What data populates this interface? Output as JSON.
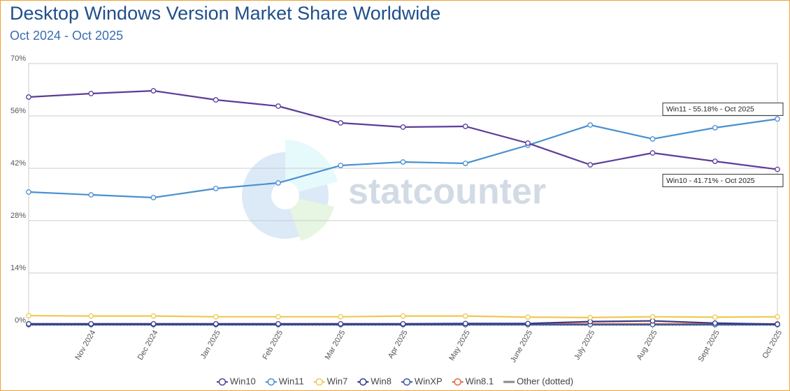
{
  "chart_data": {
    "type": "line",
    "title": "Desktop Windows Version Market Share Worldwide",
    "subtitle": "Oct 2024 - Oct 2025",
    "watermark": "statcounter",
    "categories": [
      null,
      "Nov 2024",
      "Dec 2024",
      "Jan 2025",
      "Feb 2025",
      "Mar 2025",
      "Apr 2025",
      "May 2025",
      "June 2025",
      "July 2025",
      "Aug 2025",
      "Sept 2025",
      "Oct 2025"
    ],
    "ylim": [
      0,
      70
    ],
    "yticks": [
      {
        "value": 0,
        "label": "0%"
      },
      {
        "value": 14,
        "label": "14%"
      },
      {
        "value": 28,
        "label": "28%"
      },
      {
        "value": 42,
        "label": "42%"
      },
      {
        "value": 56,
        "label": "56%"
      },
      {
        "value": 70,
        "label": "70%"
      }
    ],
    "grid": true,
    "legend": "bottom",
    "series": [
      {
        "name": "Win10",
        "color": "#5c3c99",
        "values": [
          61.04,
          61.97,
          62.72,
          60.29,
          58.61,
          54.13,
          53.01,
          53.2,
          48.72,
          42.93,
          46.1,
          43.87,
          41.71
        ]
      },
      {
        "name": "Win11",
        "color": "#4a90d0",
        "values": [
          35.65,
          34.9,
          34.16,
          36.59,
          38.08,
          42.75,
          43.68,
          43.31,
          48.16,
          53.57,
          49.84,
          52.83,
          55.18
        ]
      },
      {
        "name": "Win7",
        "color": "#f0c850",
        "values": [
          2.6,
          2.5,
          2.5,
          2.3,
          2.3,
          2.3,
          2.5,
          2.5,
          2.2,
          2.1,
          2.3,
          2.2,
          2.3
        ]
      },
      {
        "name": "Win8",
        "color": "#333a8c",
        "values": [
          0.4,
          0.4,
          0.4,
          0.4,
          0.4,
          0.4,
          0.4,
          0.5,
          0.5,
          1.0,
          1.2,
          0.6,
          0.3
        ]
      },
      {
        "name": "WinXP",
        "color": "#3d5a9e",
        "values": [
          0.2,
          0.2,
          0.2,
          0.2,
          0.2,
          0.2,
          0.2,
          0.2,
          0.2,
          0.2,
          0.2,
          0.2,
          0.2
        ]
      },
      {
        "name": "Win8.1",
        "color": "#e8683a",
        "values": [
          0.4,
          0.4,
          0.4,
          0.4,
          0.4,
          0.4,
          0.4,
          0.4,
          0.4,
          0.4,
          0.4,
          0.4,
          0.4
        ]
      },
      {
        "name": "Other (dotted)",
        "color": "#888888",
        "dotted": true,
        "values": [
          0.1,
          0.1,
          0.1,
          0.1,
          0.1,
          0.1,
          0.1,
          0.1,
          0.1,
          0.1,
          0.1,
          0.1,
          0.1
        ]
      }
    ],
    "annotations": [
      {
        "text": "Win11 - 55.18% - Oct 2025",
        "series": 1
      },
      {
        "text": "Win10 - 41.71% - Oct 2025",
        "series": 0
      }
    ]
  }
}
